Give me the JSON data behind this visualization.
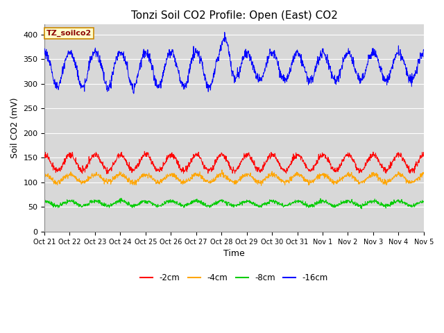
{
  "title": "Tonzi Soil CO2 Profile: Open (East) CO2",
  "ylabel": "Soil CO2 (mV)",
  "xlabel": "Time",
  "watermark_text": "TZ_soilco2",
  "xticklabels": [
    "Oct 21",
    "Oct 22",
    "Oct 23",
    "Oct 24",
    "Oct 25",
    "Oct 26",
    "Oct 27",
    "Oct 28",
    "Oct 29",
    "Oct 30",
    "Oct 31",
    "Nov 1",
    "Nov 2",
    "Nov 3",
    "Nov 4",
    "Nov 5"
  ],
  "ylim": [
    0,
    420
  ],
  "yticks": [
    0,
    50,
    100,
    150,
    200,
    250,
    300,
    350,
    400
  ],
  "colors": {
    "m2cm": "#ff0000",
    "m4cm": "#ffa500",
    "m8cm": "#00cc00",
    "m16cm": "#0000ff"
  },
  "legend_labels": [
    "-2cm",
    "-4cm",
    "-8cm",
    "-16cm"
  ],
  "plot_bg_color": "#d8d8d8",
  "fig_bg_color": "#ffffff",
  "grid_color": "#ffffff",
  "title_fontsize": 11,
  "axis_fontsize": 9,
  "tick_fontsize": 8,
  "n_points": 1440
}
